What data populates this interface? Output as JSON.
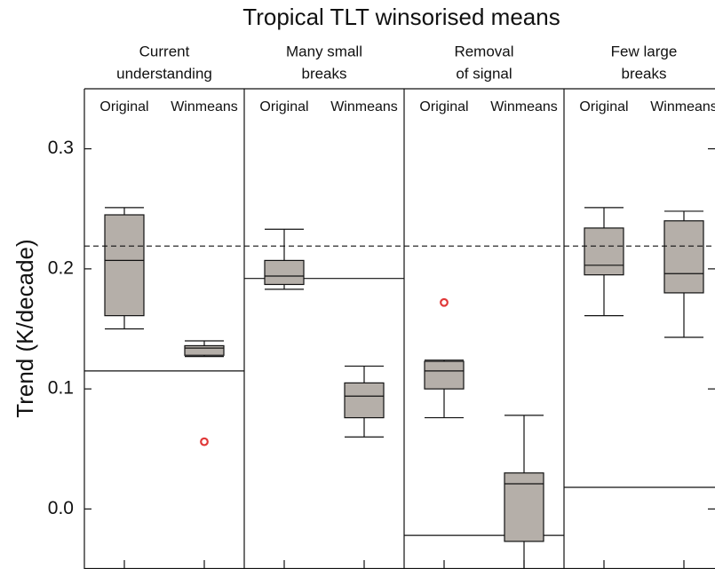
{
  "chart_data": {
    "type": "box",
    "title": "Tropical TLT winsorised means",
    "ylabel": "Trend (K/decade)",
    "ylim": [
      -0.05,
      0.35
    ],
    "yticks": [
      {
        "value": 0,
        "label": "0.0"
      },
      0.1,
      0.2,
      0.3
    ],
    "reference_line": 0.219,
    "box_color": "#b5afa9",
    "outlier_color": "#e03838",
    "panels": [
      {
        "title": [
          "Current",
          "understanding"
        ],
        "reference": 0.115,
        "boxes": [
          {
            "name": "Original",
            "whisker_low": 0.15,
            "q1": 0.161,
            "median": 0.207,
            "q3": 0.245,
            "whisker_high": 0.251,
            "outliers": []
          },
          {
            "name": "Winmeans",
            "whisker_low": 0.127,
            "q1": 0.128,
            "median": 0.134,
            "q3": 0.136,
            "whisker_high": 0.14,
            "outliers": [
              0.056
            ]
          }
        ]
      },
      {
        "title": [
          "Many small",
          "breaks"
        ],
        "reference": 0.192,
        "boxes": [
          {
            "name": "Original",
            "whisker_low": 0.183,
            "q1": 0.187,
            "median": 0.194,
            "q3": 0.207,
            "whisker_high": 0.233,
            "outliers": []
          },
          {
            "name": "Winmeans",
            "whisker_low": 0.06,
            "q1": 0.076,
            "median": 0.094,
            "q3": 0.105,
            "whisker_high": 0.119,
            "outliers": []
          }
        ]
      },
      {
        "title": [
          "Removal",
          "of signal"
        ],
        "reference": -0.022,
        "boxes": [
          {
            "name": "Original",
            "whisker_low": 0.076,
            "q1": 0.1,
            "median": 0.115,
            "q3": 0.123,
            "whisker_high": 0.124,
            "outliers": [
              0.172
            ]
          },
          {
            "name": "Winmeans",
            "whisker_low": -0.06,
            "q1": -0.027,
            "median": 0.021,
            "q3": 0.03,
            "whisker_high": 0.078,
            "outliers": []
          }
        ]
      },
      {
        "title": [
          "Few large",
          "breaks"
        ],
        "reference": 0.018,
        "boxes": [
          {
            "name": "Original",
            "whisker_low": 0.161,
            "q1": 0.195,
            "median": 0.203,
            "q3": 0.234,
            "whisker_high": 0.251,
            "outliers": []
          },
          {
            "name": "Winmeans",
            "whisker_low": 0.143,
            "q1": 0.18,
            "median": 0.196,
            "q3": 0.24,
            "whisker_high": 0.248,
            "outliers": []
          }
        ]
      }
    ]
  }
}
